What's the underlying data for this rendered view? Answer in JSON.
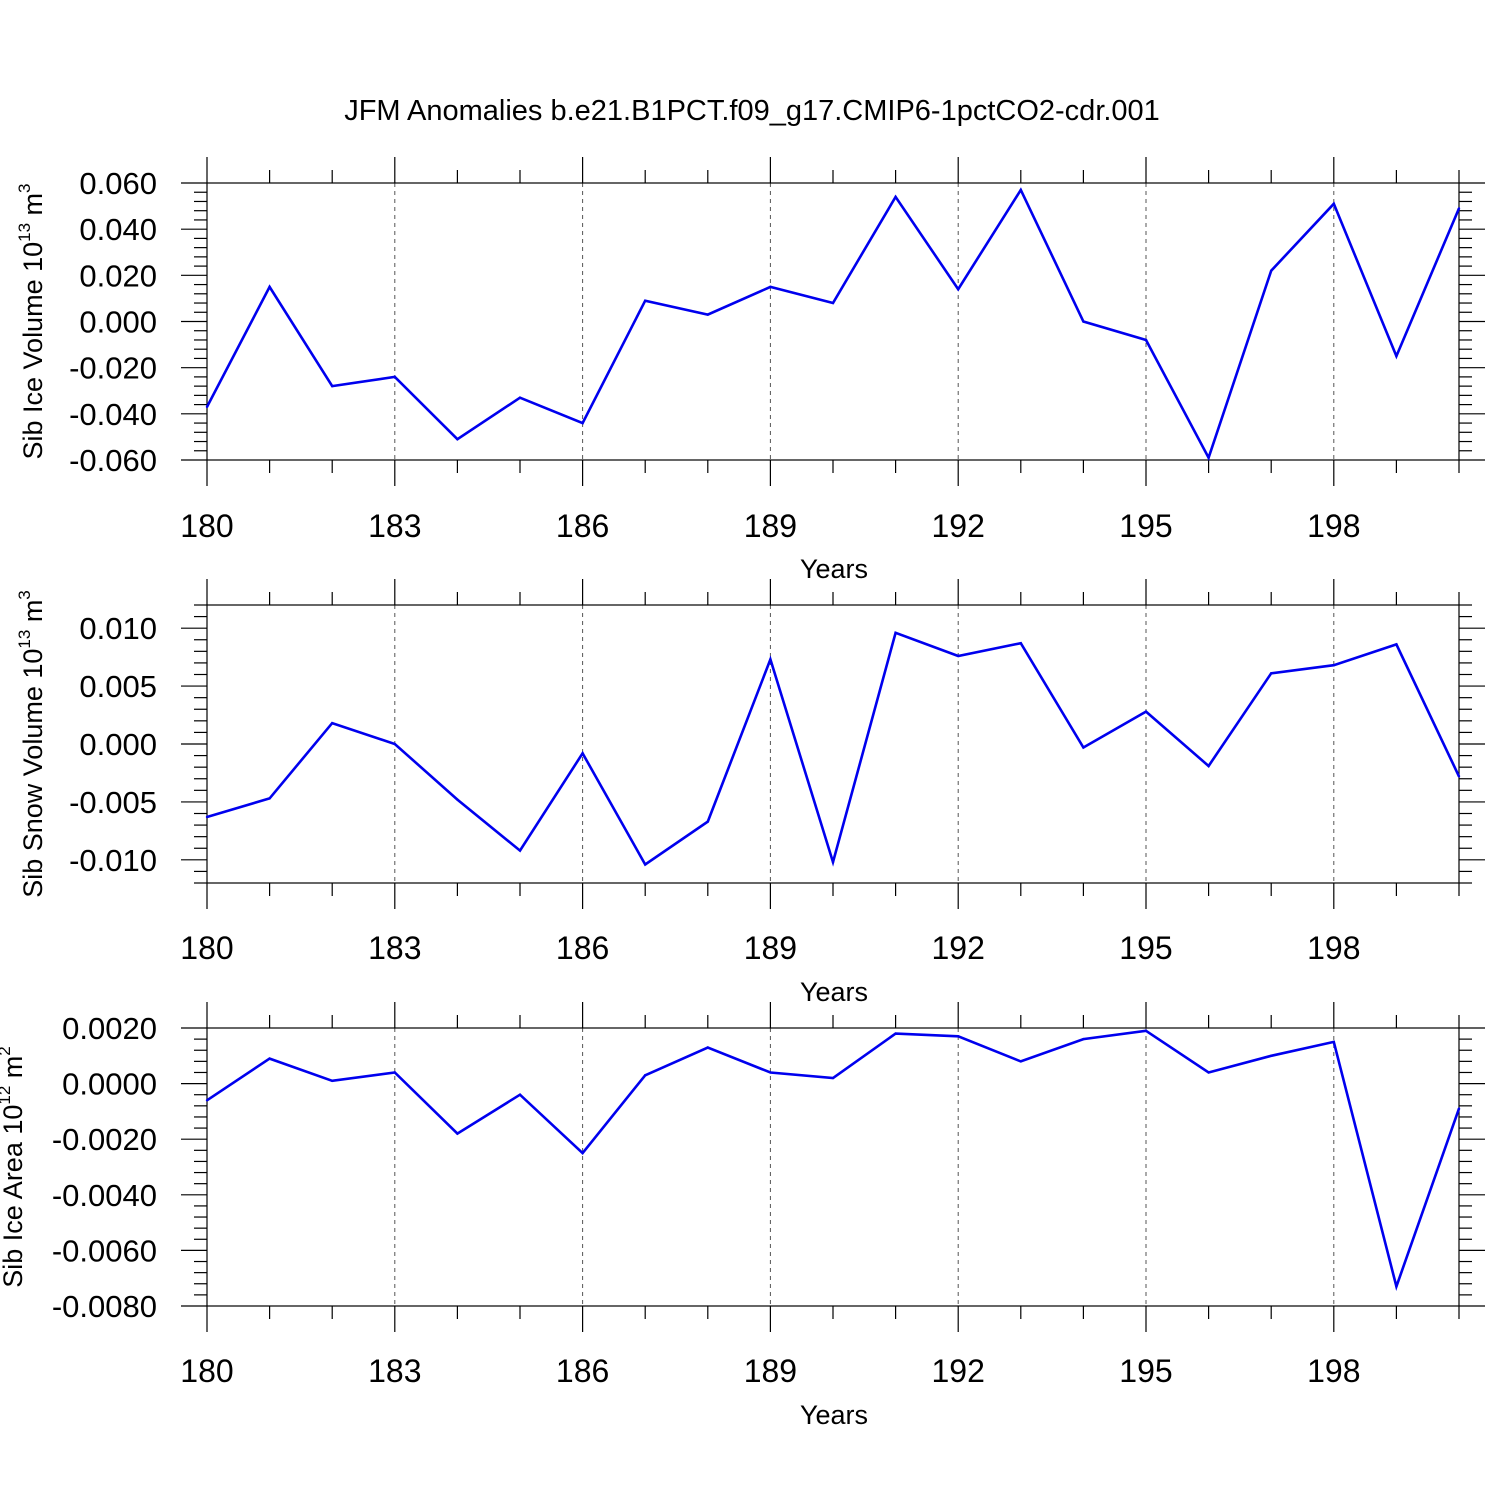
{
  "title": "JFM Anomalies b.e21.B1PCT.f09_g17.CMIP6-1pctCO2-cdr.001",
  "colors": {
    "line": "#0000ee",
    "grid": "#555555",
    "axis": "#000000"
  },
  "chart_data": [
    {
      "type": "line",
      "ylabel_main": "Sib Ice Volume 10",
      "ylabel_exp": "13",
      "ylabel_unit": "m",
      "ylabel_unit_exp": "3",
      "xlabel": "Years",
      "x": [
        180,
        181,
        182,
        183,
        184,
        185,
        186,
        187,
        188,
        189,
        190,
        191,
        192,
        193,
        194,
        195,
        196,
        197,
        198,
        199,
        200
      ],
      "values": [
        -0.037,
        0.015,
        -0.028,
        -0.024,
        -0.051,
        -0.033,
        -0.044,
        0.009,
        0.003,
        0.015,
        0.008,
        0.054,
        0.014,
        0.057,
        0.0,
        -0.008,
        -0.059,
        0.022,
        0.051,
        -0.015,
        0.049
      ],
      "xlim": [
        180,
        200
      ],
      "ylim": [
        -0.06,
        0.06
      ],
      "xticks": [
        180,
        183,
        186,
        189,
        192,
        195,
        198
      ],
      "yticks": [
        -0.06,
        -0.04,
        -0.02,
        0.0,
        0.02,
        0.04,
        0.06
      ],
      "ytick_labels": [
        "-0.060",
        "-0.040",
        "-0.020",
        "0.000",
        "0.020",
        "0.040",
        "0.060"
      ]
    },
    {
      "type": "line",
      "ylabel_main": "Sib Snow Volume 10",
      "ylabel_exp": "13",
      "ylabel_unit": "m",
      "ylabel_unit_exp": "3",
      "xlabel": "Years",
      "x": [
        180,
        181,
        182,
        183,
        184,
        185,
        186,
        187,
        188,
        189,
        190,
        191,
        192,
        193,
        194,
        195,
        196,
        197,
        198,
        199,
        200
      ],
      "values": [
        -0.0063,
        -0.0047,
        0.0018,
        0.0,
        -0.0048,
        -0.0092,
        -0.0008,
        -0.0104,
        -0.0067,
        0.0073,
        -0.0102,
        0.0096,
        0.0076,
        0.0087,
        -0.0003,
        0.0028,
        -0.0019,
        0.0061,
        0.0068,
        0.0086,
        -0.0028
      ],
      "xlim": [
        180,
        200
      ],
      "ylim": [
        -0.012,
        0.012
      ],
      "xticks": [
        180,
        183,
        186,
        189,
        192,
        195,
        198
      ],
      "yticks": [
        -0.01,
        -0.005,
        0.0,
        0.005,
        0.01
      ],
      "ytick_labels": [
        "-0.010",
        "-0.005",
        "0.000",
        "0.005",
        "0.010"
      ]
    },
    {
      "type": "line",
      "ylabel_main": "Sib Ice Area 10",
      "ylabel_exp": "12",
      "ylabel_unit": "m",
      "ylabel_unit_exp": "2",
      "xlabel": "Years",
      "x": [
        180,
        181,
        182,
        183,
        184,
        185,
        186,
        187,
        188,
        189,
        190,
        191,
        192,
        193,
        194,
        195,
        196,
        197,
        198,
        199,
        200
      ],
      "values": [
        -0.0006,
        0.0009,
        0.0001,
        0.0004,
        -0.0018,
        -0.0004,
        -0.0025,
        0.0003,
        0.0013,
        0.0004,
        0.0002,
        0.0018,
        0.0017,
        0.0008,
        0.0016,
        0.0019,
        0.0004,
        0.001,
        0.0015,
        -0.0073,
        -0.0009
      ],
      "xlim": [
        180,
        200
      ],
      "ylim": [
        -0.008,
        0.002
      ],
      "xticks": [
        180,
        183,
        186,
        189,
        192,
        195,
        198
      ],
      "yticks": [
        -0.008,
        -0.006,
        -0.004,
        -0.002,
        0.0,
        0.002
      ],
      "ytick_labels": [
        "-0.0080",
        "-0.0060",
        "-0.0040",
        "-0.0020",
        "0.0000",
        "0.0020"
      ]
    }
  ]
}
